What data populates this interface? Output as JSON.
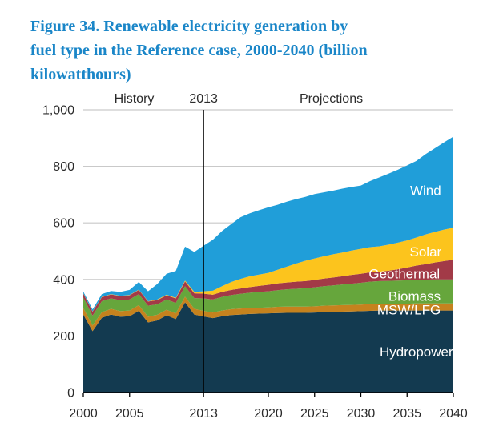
{
  "figure": {
    "title_lines": [
      "Figure 34. Renewable electricity generation by",
      "fuel type in the Reference case, 2000-2040 (billion",
      "kilowatthours)"
    ],
    "title_color": "#1a86c8"
  },
  "chart_data": {
    "type": "area",
    "stacked": true,
    "title": "Figure 34. Renewable electricity generation by fuel type in the Reference case, 2000-2040 (billion kilowatthours)",
    "ylabel": "billion kilowatthours",
    "xlabel": "",
    "xlim": [
      2000,
      2040
    ],
    "ylim": [
      0,
      1000
    ],
    "grid": true,
    "legend_position": "in-plot-labels",
    "x": [
      2000,
      2001,
      2002,
      2003,
      2004,
      2005,
      2006,
      2007,
      2008,
      2009,
      2010,
      2011,
      2012,
      2013,
      2014,
      2015,
      2016,
      2017,
      2018,
      2019,
      2020,
      2021,
      2022,
      2023,
      2024,
      2025,
      2026,
      2027,
      2028,
      2029,
      2030,
      2031,
      2032,
      2033,
      2034,
      2035,
      2036,
      2037,
      2038,
      2039,
      2040
    ],
    "series": [
      {
        "name": "Hydropower",
        "color": "#133a50",
        "label_pos": {
          "year": 2036.0,
          "value": 145
        },
        "values": [
          276,
          217,
          264,
          276,
          268,
          270,
          289,
          248,
          255,
          273,
          260,
          319,
          276,
          269,
          263,
          270,
          274,
          276,
          278,
          279,
          280,
          281,
          282,
          282,
          282,
          283,
          284,
          285,
          286,
          287,
          288,
          289,
          290,
          290,
          290,
          290,
          290,
          290,
          290,
          290,
          290
        ]
      },
      {
        "name": "MSW/LFG",
        "color": "#c5821e",
        "label_pos": {
          "year": 2035.2,
          "value": 293
        },
        "values": [
          23,
          20,
          20,
          20,
          20,
          20,
          20,
          20,
          20,
          20,
          20,
          20,
          20,
          20,
          20,
          20,
          21,
          21,
          21,
          21,
          21,
          22,
          22,
          22,
          22,
          22,
          23,
          23,
          23,
          23,
          23,
          24,
          24,
          24,
          24,
          24,
          25,
          25,
          25,
          25,
          25
        ]
      },
      {
        "name": "Biomass",
        "color": "#66a63c",
        "label_pos": {
          "year": 2035.8,
          "value": 341
        },
        "values": [
          37,
          35,
          39,
          37,
          38,
          39,
          39,
          39,
          37,
          36,
          37,
          37,
          38,
          44,
          46,
          48,
          50,
          52,
          54,
          56,
          57,
          59,
          61,
          63,
          65,
          67,
          69,
          71,
          73,
          75,
          77,
          79,
          80,
          81,
          82,
          83,
          84,
          84,
          85,
          85,
          85
        ]
      },
      {
        "name": "Geothermal",
        "color": "#a23a47",
        "label_pos": {
          "year": 2034.7,
          "value": 420
        },
        "values": [
          14,
          14,
          14,
          14,
          15,
          15,
          15,
          15,
          15,
          15,
          16,
          17,
          17,
          17,
          17,
          18,
          18,
          19,
          20,
          21,
          23,
          24,
          24,
          25,
          25,
          26,
          27,
          28,
          29,
          31,
          32,
          33,
          33,
          36,
          40,
          45,
          50,
          55,
          60,
          65,
          70
        ]
      },
      {
        "name": "Solar",
        "color": "#fcc41d",
        "label_pos": {
          "year": 2037.0,
          "value": 498
        },
        "values": [
          1,
          1,
          1,
          1,
          1,
          1,
          1,
          1,
          2,
          2,
          2,
          3,
          5,
          8,
          14,
          20,
          28,
          34,
          38,
          40,
          42,
          48,
          56,
          64,
          72,
          76,
          79,
          82,
          84,
          86,
          88,
          89,
          90,
          92,
          94,
          96,
          99,
          105,
          108,
          111,
          113
        ]
      },
      {
        "name": "Wind",
        "color": "#209ed9",
        "label_pos": {
          "year": 2037.0,
          "value": 715
        },
        "values": [
          6,
          7,
          10,
          11,
          14,
          18,
          27,
          35,
          55,
          74,
          95,
          120,
          141,
          161,
          180,
          195,
          205,
          218,
          223,
          228,
          232,
          230,
          230,
          228,
          226,
          228,
          226,
          225,
          226,
          225,
          224,
          234,
          244,
          251,
          258,
          265,
          271,
          284,
          296,
          309,
          322
        ]
      }
    ],
    "xticks": [
      {
        "value": 2000,
        "label": "2000"
      },
      {
        "value": 2005,
        "label": "2005"
      },
      {
        "value": 2013,
        "label": "2013"
      },
      {
        "value": 2020,
        "label": "2020"
      },
      {
        "value": 2025,
        "label": "2025"
      },
      {
        "value": 2030,
        "label": "2030"
      },
      {
        "value": 2035,
        "label": "2035"
      },
      {
        "value": 2040,
        "label": "2040"
      }
    ],
    "yticks": [
      {
        "value": 0,
        "label": "0"
      },
      {
        "value": 200,
        "label": "200"
      },
      {
        "value": 400,
        "label": "400"
      },
      {
        "value": 600,
        "label": "600"
      },
      {
        "value": 800,
        "label": "800"
      },
      {
        "value": 1000,
        "label": "1,000"
      }
    ],
    "divider": {
      "year": 2013
    },
    "annotations": [
      {
        "text": "History",
        "year": 2005.5
      },
      {
        "text": "2013",
        "year": 2013
      },
      {
        "text": "Projections",
        "year": 2026.8
      }
    ],
    "colors": {
      "grid": "#c9c9c9",
      "axis": "#000000",
      "tick_text": "#2b2b2b",
      "band_label_text": "#ffffff"
    }
  }
}
